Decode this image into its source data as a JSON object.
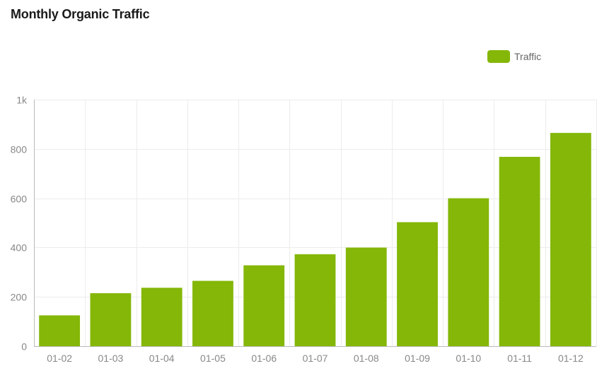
{
  "chart_data": {
    "type": "bar",
    "title": "Monthly Organic Traffic",
    "categories": [
      "01-02",
      "01-03",
      "01-04",
      "01-05",
      "01-06",
      "01-07",
      "01-08",
      "01-09",
      "01-10",
      "01-11",
      "01-12"
    ],
    "series": [
      {
        "name": "Traffic",
        "color": "#84b708",
        "values": [
          125,
          215,
          237,
          265,
          328,
          373,
          400,
          503,
          600,
          768,
          865
        ]
      }
    ],
    "ylim": [
      0,
      1000
    ],
    "y_ticks": [
      0,
      200,
      400,
      600,
      800,
      1000
    ],
    "y_tick_labels": [
      "0",
      "200",
      "400",
      "600",
      "800",
      "1k"
    ],
    "grid": true,
    "legend_position": "top-right"
  }
}
